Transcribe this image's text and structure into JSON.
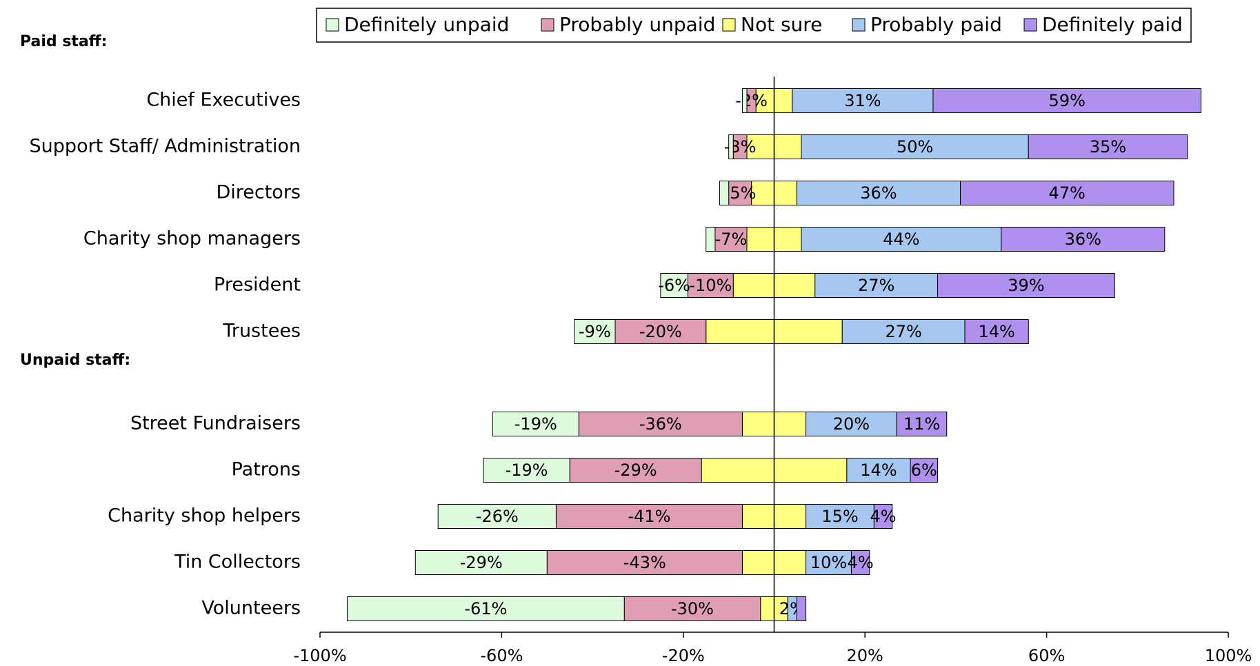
{
  "chart_data": {
    "type": "diverging-bar",
    "group_labels": [
      "Paid staff:",
      "Unpaid staff:"
    ],
    "categories": [
      "Chief Executives",
      "Support Staff/ Administration",
      "Directors",
      "Charity shop managers",
      "President",
      "Trustees",
      "Street Fundraisers",
      "Patrons",
      "Charity shop helpers",
      "Tin Collectors",
      "Volunteers"
    ],
    "series": [
      {
        "name": "Definitely unpaid",
        "color": "#ddfadd",
        "values": [
          -1,
          -1,
          -2,
          -2,
          -6,
          -9,
          -19,
          -19,
          -26,
          -29,
          -61
        ],
        "value_labels": [
          null,
          null,
          null,
          null,
          "-6%",
          "-9%",
          "-19%",
          "-19%",
          "-26%",
          "-29%",
          "-61%"
        ]
      },
      {
        "name": "Probably unpaid",
        "color": "#e09eb4",
        "values": [
          -2,
          -3,
          -5,
          -7,
          -10,
          -20,
          -36,
          -29,
          -41,
          -43,
          -30
        ],
        "value_labels": [
          "-2%",
          "-3%",
          "-5%",
          "-7%",
          "-10%",
          "-20%",
          "-36%",
          "-29%",
          "-41%",
          "-43%",
          "-30%"
        ]
      },
      {
        "name": "Not sure",
        "color": "#ffff80",
        "values": [
          8,
          12,
          10,
          12,
          18,
          30,
          14,
          32,
          14,
          14,
          6
        ]
      },
      {
        "name": "Probably paid",
        "color": "#a6c8f0",
        "values": [
          31,
          50,
          36,
          44,
          27,
          27,
          20,
          14,
          15,
          10,
          2
        ],
        "value_labels": [
          "31%",
          "50%",
          "36%",
          "44%",
          "27%",
          "27%",
          "20%",
          "14%",
          "15%",
          "10%",
          "2%"
        ]
      },
      {
        "name": "Definitely paid",
        "color": "#b090ee",
        "values": [
          59,
          35,
          47,
          36,
          39,
          14,
          11,
          6,
          4,
          4,
          2
        ],
        "value_labels": [
          "59%",
          "35%",
          "47%",
          "36%",
          "39%",
          "14%",
          "11%",
          "6%",
          "4%",
          "4%",
          null
        ]
      }
    ],
    "xlim": [
      -100,
      100
    ],
    "xticks": [
      {
        "value": -100,
        "label": "-100%"
      },
      {
        "value": -60,
        "label": "-60%"
      },
      {
        "value": -20,
        "label": "-20%"
      },
      {
        "value": 20,
        "label": "20%"
      },
      {
        "value": 60,
        "label": "60%"
      },
      {
        "value": 100,
        "label": "100%"
      }
    ]
  }
}
